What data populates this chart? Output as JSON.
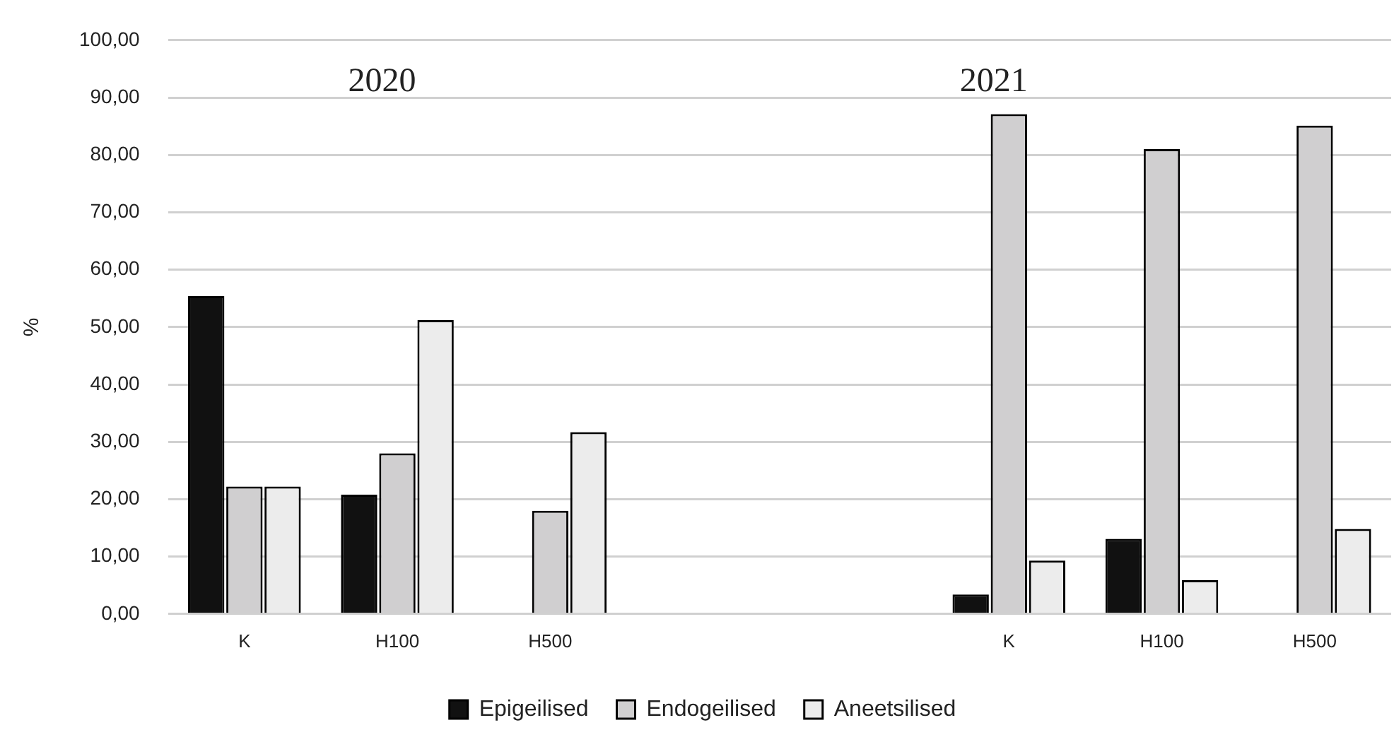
{
  "chart_data": {
    "type": "bar",
    "ylabel": "%",
    "categories": [
      "K",
      "H100",
      "H500",
      null,
      null,
      "K",
      "H100",
      "H500"
    ],
    "series": [
      {
        "name": "Epigeilised",
        "color": "#111111",
        "values": [
          55.4,
          20.8,
          null,
          null,
          null,
          3.4,
          13.1,
          null
        ]
      },
      {
        "name": "Endogeilised",
        "color": "#d0cfd0",
        "values": [
          22.2,
          28.0,
          18.0,
          null,
          null,
          87.1,
          81.0,
          85.1
        ]
      },
      {
        "name": "Aneetsilised",
        "color": "#ececec",
        "values": [
          22.2,
          51.2,
          31.7,
          null,
          null,
          9.3,
          5.9,
          14.8
        ]
      }
    ],
    "ylim": [
      0,
      100
    ],
    "yticks": [
      {
        "value": 0,
        "label": "0,00"
      },
      {
        "value": 10,
        "label": "10,00"
      },
      {
        "value": 20,
        "label": "20,00"
      },
      {
        "value": 30,
        "label": "30,00"
      },
      {
        "value": 40,
        "label": "40,00"
      },
      {
        "value": 50,
        "label": "50,00"
      },
      {
        "value": 60,
        "label": "60,00"
      },
      {
        "value": 70,
        "label": "70,00"
      },
      {
        "value": 80,
        "label": "80,00"
      },
      {
        "value": 90,
        "label": "90,00"
      },
      {
        "value": 100,
        "label": "100,00"
      }
    ],
    "annotations": [
      "2020",
      "2021"
    ],
    "grid": "y",
    "legend": "bottom"
  }
}
